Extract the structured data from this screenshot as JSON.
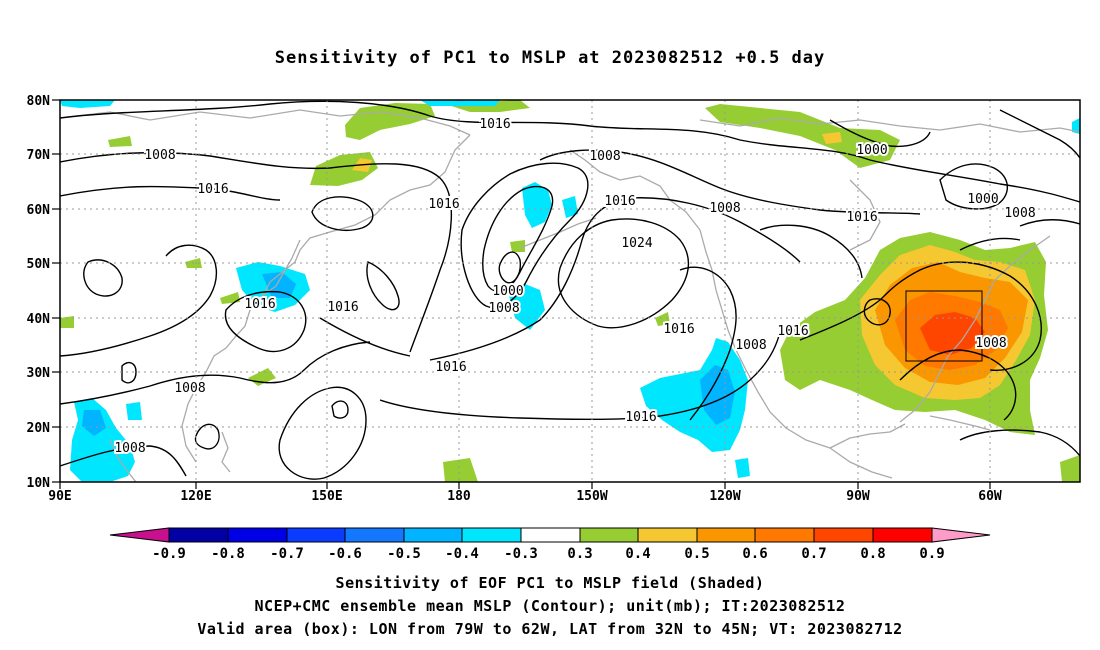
{
  "title": "Sensitivity of PC1 to MSLP at 2023082512 +0.5 day",
  "lat_labels": [
    "80N",
    "70N",
    "60N",
    "50N",
    "40N",
    "30N",
    "20N",
    "10N"
  ],
  "lon_labels": [
    "90E",
    "120E",
    "150E",
    "180",
    "150W",
    "120W",
    "90W",
    "60W"
  ],
  "contour_labels": [
    "1016",
    "1008",
    "1016",
    "1008",
    "1016",
    "1016",
    "1008",
    "1008",
    "1016",
    "1016",
    "1000",
    "1008",
    "1024",
    "1016",
    "1008",
    "1016",
    "1016",
    "1008",
    "1016",
    "1000",
    "1000",
    "1008",
    "1016",
    "1008"
  ],
  "colorbar": {
    "labels": [
      "-0.9",
      "-0.8",
      "-0.7",
      "-0.6",
      "-0.5",
      "-0.4",
      "-0.3",
      "0.3",
      "0.4",
      "0.5",
      "0.6",
      "0.7",
      "0.8",
      "0.9"
    ],
    "colors": {
      "low_extend": "#c8108f",
      "neg_0.9": "#0000a5",
      "neg_0.8": "#0000e6",
      "neg_0.7": "#0a3cff",
      "neg_0.6": "#1478ff",
      "neg_0.5": "#00b4ff",
      "neg_0.4": "#00e6ff",
      "near_zero": "#ffffff",
      "pos_0.3": "#96cd32",
      "pos_0.4": "#f5c832",
      "pos_0.5": "#fa9600",
      "pos_0.6": "#ff7800",
      "pos_0.7": "#ff4600",
      "pos_0.8": "#ff0000",
      "high_extend": "#ff9bc8"
    }
  },
  "valid_box": {
    "lon_from": "79W",
    "lon_to": "62W",
    "lat_from": "32N",
    "lat_to": "45N"
  },
  "captions": [
    "Sensitivity of EOF PC1 to MSLP field (Shaded)",
    "NCEP+CMC ensemble mean MSLP (Contour); unit(mb); IT:2023082512",
    "Valid area (box): LON from 79W to 62W, LAT from 32N to 45N; VT: 2023082712"
  ]
}
